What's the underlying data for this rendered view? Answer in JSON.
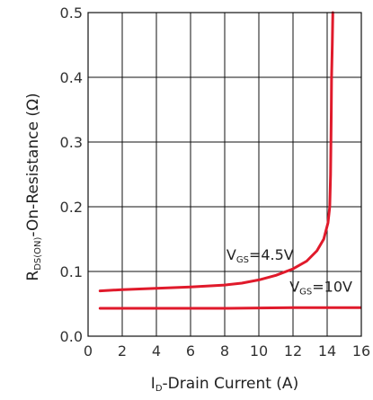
{
  "chart_data": {
    "type": "line",
    "xlabel": {
      "main": "I",
      "sub": "D",
      "rest": "-Drain Current (A)"
    },
    "ylabel": {
      "main": "R",
      "sub": "DS(ON)",
      "rest": "-On-Resistance (Ω)"
    },
    "xlim": [
      0,
      16
    ],
    "ylim": [
      0,
      0.5
    ],
    "x_ticks": [
      "0",
      "2",
      "4",
      "6",
      "8",
      "10",
      "12",
      "14",
      "16"
    ],
    "y_ticks": [
      "0.0",
      "0.1",
      "0.2",
      "0.3",
      "0.4",
      "0.5"
    ],
    "grid": true,
    "series": [
      {
        "label": {
          "main": "V",
          "sub": "GS",
          "rest": "=4.5V"
        },
        "color": "#e01a2b",
        "points": [
          [
            0.7,
            0.07
          ],
          [
            2,
            0.072
          ],
          [
            4,
            0.074
          ],
          [
            6,
            0.076
          ],
          [
            8,
            0.079
          ],
          [
            9,
            0.082
          ],
          [
            10,
            0.087
          ],
          [
            11,
            0.094
          ],
          [
            12,
            0.104
          ],
          [
            12.8,
            0.116
          ],
          [
            13.4,
            0.132
          ],
          [
            13.8,
            0.15
          ],
          [
            14.05,
            0.175
          ],
          [
            14.15,
            0.2
          ],
          [
            14.2,
            0.25
          ],
          [
            14.22,
            0.3
          ],
          [
            14.24,
            0.35
          ],
          [
            14.26,
            0.4
          ],
          [
            14.3,
            0.45
          ],
          [
            14.33,
            0.5
          ]
        ]
      },
      {
        "label": {
          "main": "V",
          "sub": "GS",
          "rest": "=10V"
        },
        "color": "#e01a2b",
        "points": [
          [
            0.7,
            0.043
          ],
          [
            4,
            0.043
          ],
          [
            8,
            0.043
          ],
          [
            12,
            0.044
          ],
          [
            16,
            0.044
          ]
        ]
      }
    ]
  }
}
